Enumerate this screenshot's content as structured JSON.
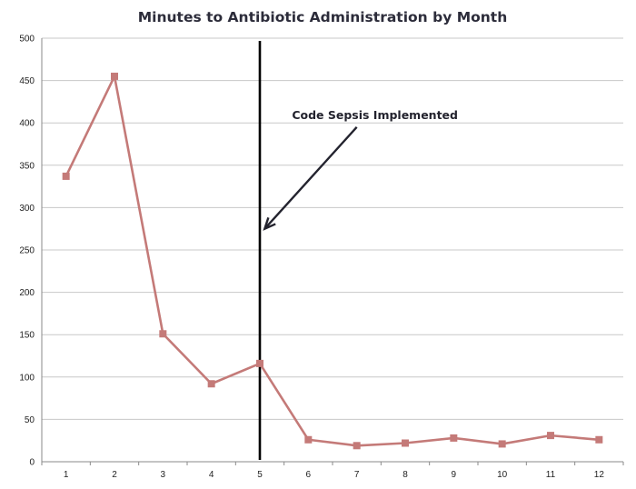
{
  "chart_data": {
    "type": "line",
    "title": "Minutes to Antibiotic Administration by Month",
    "xlabel": "",
    "ylabel": "",
    "x": [
      1,
      2,
      3,
      4,
      5,
      6,
      7,
      8,
      9,
      10,
      11,
      12
    ],
    "series": [
      {
        "values": [
          337,
          455,
          151,
          92,
          116,
          26,
          19,
          22,
          28,
          21,
          31,
          26
        ],
        "color": "#c47a78"
      }
    ],
    "ylim": [
      0,
      500
    ],
    "yticks": [
      0,
      50,
      100,
      150,
      200,
      250,
      300,
      350,
      400,
      450,
      500
    ],
    "xlim": [
      0.5,
      12.5
    ],
    "grid": true,
    "legend": "none",
    "marker": "square",
    "annotations": [
      {
        "text": "Code Sepsis Implemented",
        "vertical_line_x": 5,
        "arrow_from": [
          7.0,
          395
        ],
        "arrow_to": [
          5.1,
          275
        ]
      }
    ]
  }
}
